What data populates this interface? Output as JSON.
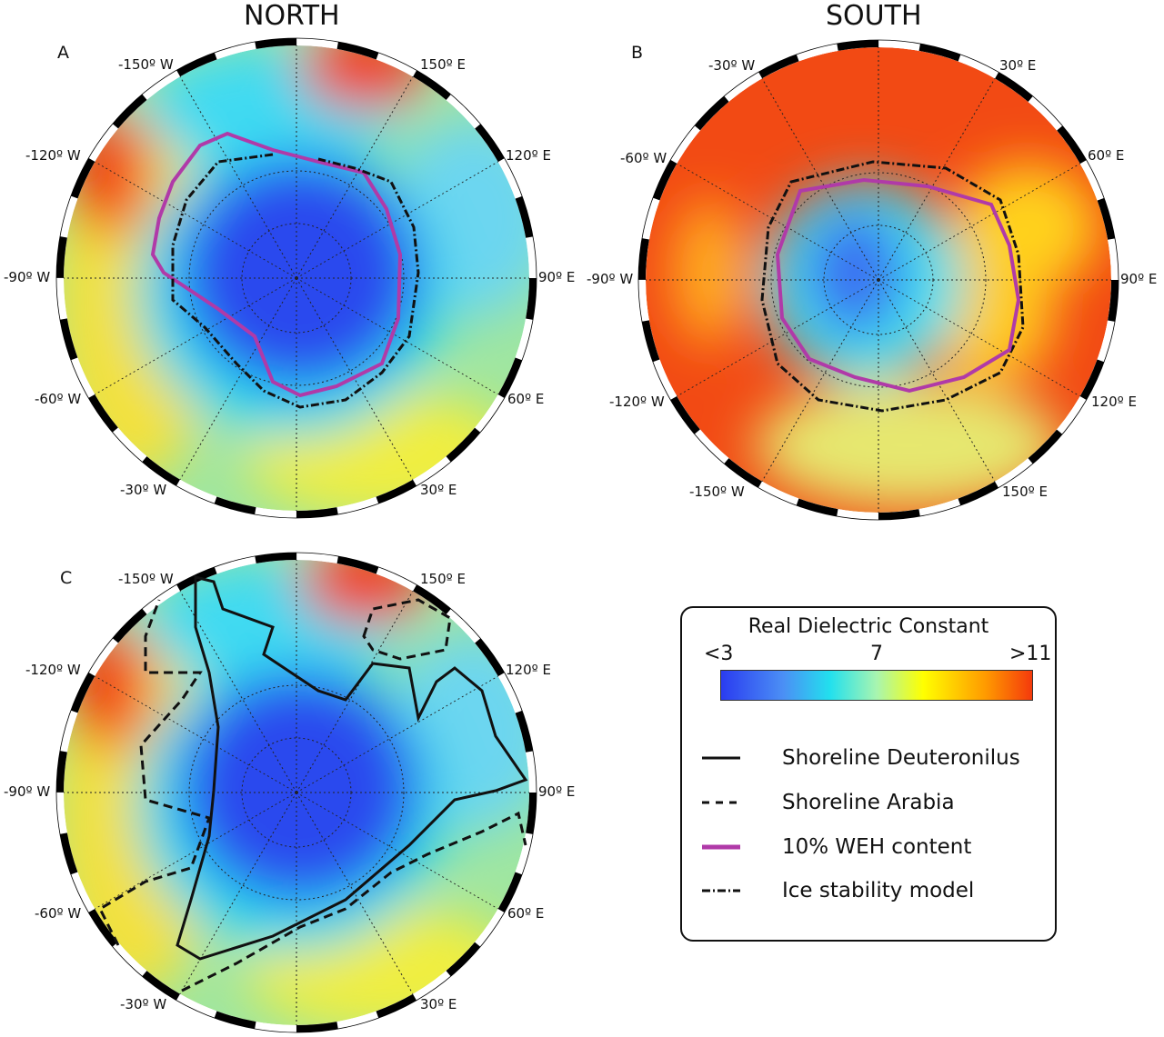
{
  "titles": {
    "north": "NORTH",
    "south": "SOUTH"
  },
  "panels": {
    "A": {
      "letter": "A",
      "labels": [
        "-150º W",
        "150º E",
        "-120º W",
        "120º E",
        "-90º W",
        "90º E",
        "-60º W",
        "60º E",
        "-30º W",
        "30º E"
      ]
    },
    "B": {
      "letter": "B",
      "labels": [
        "-30º W",
        "30º E",
        "-60º W",
        "60º E",
        "-90º W",
        "90º E",
        "-120º W",
        "120º E",
        "-150º W",
        "150º E"
      ]
    },
    "C": {
      "letter": "C",
      "labels": [
        "-150º W",
        "150º E",
        "-120º W",
        "120º E",
        "-90º W",
        "90º E",
        "-60º W",
        "60º E",
        "-30º W",
        "30º E"
      ]
    }
  },
  "legend": {
    "title": "Real Dielectric Constant",
    "min": "<3",
    "mid": "7",
    "max": ">11",
    "items": [
      {
        "label": "Shoreline Deuteronilus",
        "style": "solid",
        "color": "#111111"
      },
      {
        "label": "Shoreline Arabia",
        "style": "dashed",
        "color": "#111111"
      },
      {
        "label": "10%  WEH content",
        "style": "solid",
        "color": "#b03aa8"
      },
      {
        "label": "Ice stability model",
        "style": "dashdot",
        "color": "#111111"
      }
    ]
  },
  "colors": {
    "magenta": "#b03aa8",
    "low": "#2a3cf0",
    "high": "#f43a0c"
  }
}
